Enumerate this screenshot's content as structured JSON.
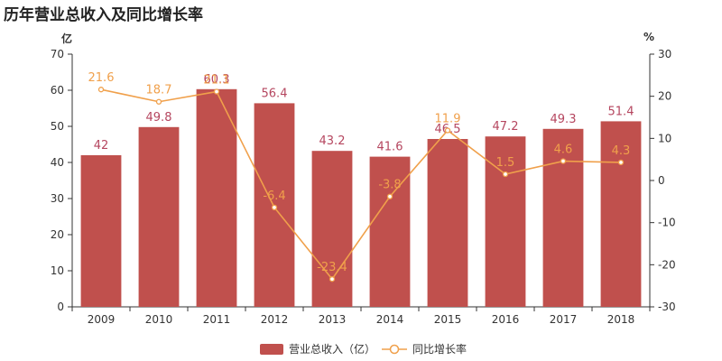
{
  "title": "历年营业总收入及同比增长率",
  "left_unit": "亿",
  "right_unit": "%",
  "colors": {
    "bar": "#c0504d",
    "bar_label": "#b5465f",
    "line": "#f0a04b",
    "axis": "#333333"
  },
  "chart_data": {
    "type": "bar",
    "categories": [
      "2009",
      "2010",
      "2011",
      "2012",
      "2013",
      "2014",
      "2015",
      "2016",
      "2017",
      "2018"
    ],
    "series": [
      {
        "name": "营业总收入（亿）",
        "type": "bar",
        "axis": "left",
        "values": [
          42,
          49.8,
          60.3,
          56.4,
          43.2,
          41.6,
          46.5,
          47.2,
          49.3,
          51.4
        ],
        "labels": [
          "42",
          "49.8",
          "60.3",
          "56.4",
          "43.2",
          "41.6",
          "46.5",
          "47.2",
          "49.3",
          "51.4"
        ]
      },
      {
        "name": "同比增长率",
        "type": "line",
        "axis": "right",
        "values": [
          21.6,
          18.7,
          21.1,
          -6.4,
          -23.4,
          -3.8,
          11.9,
          1.5,
          4.6,
          4.3
        ],
        "labels": [
          "21.6",
          "18.7",
          "21.1",
          "-6.4",
          "-23.4",
          "-3.8",
          "11.9",
          "1.5",
          "4.6",
          "4.3"
        ]
      }
    ],
    "left_axis": {
      "min": 0,
      "max": 70,
      "ticks": [
        "0",
        "10",
        "20",
        "30",
        "40",
        "50",
        "60",
        "70"
      ]
    },
    "right_axis": {
      "min": -30,
      "max": 30,
      "ticks": [
        "-30",
        "-20",
        "-10",
        "0",
        "10",
        "20",
        "30"
      ]
    },
    "legend": "bottom-center",
    "grid": false
  }
}
